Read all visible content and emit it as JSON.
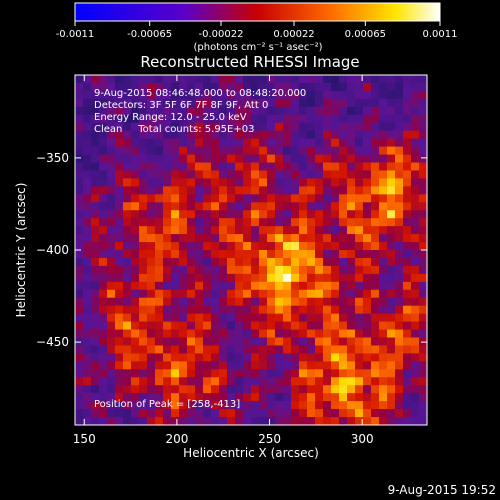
{
  "colorbar": {
    "tick_labels": [
      "-0.0011",
      "-0.00065",
      "-0.00022",
      "0.00022",
      "0.00065",
      "0.0011"
    ],
    "ticks": [
      -0.0011,
      -0.00065,
      -0.00022,
      0.00022,
      0.00065,
      0.0011
    ],
    "range": [
      -0.0011,
      0.0011
    ],
    "colors": [
      "#0000ff",
      "#5a00c8",
      "#ff0000",
      "#ff8800",
      "#ffff00",
      "#ffffff"
    ]
  },
  "chart_data": {
    "type": "heatmap",
    "title": "Reconstructed RHESSI Image",
    "unit_label": "(photons cm⁻² s⁻¹ asec⁻²)",
    "xlabel": "Heliocentric X (arcsec)",
    "ylabel": "Heliocentric Y (arcsec)",
    "xlim": [
      145,
      335
    ],
    "ylim": [
      -495,
      -305
    ],
    "x_ticks": [
      150,
      200,
      250,
      300
    ],
    "y_ticks": [
      -350,
      -400,
      -450
    ],
    "info_lines": [
      "9-Aug-2015 08:46:48.000 to 08:48:20.000",
      "Detectors: 3F 5F 6F 7F 8F 9F, Att 0",
      "Energy Range: 12.0 - 25.0 keV",
      "Clean     Total counts: 5.95E+03"
    ],
    "peak_label": "Position of Peak = [258,-413]",
    "peak": [
      258,
      -413
    ],
    "sources": [
      {
        "x": 258,
        "y": -413,
        "amp": 1.0
      },
      {
        "x": 312,
        "y": -370,
        "amp": 0.85
      },
      {
        "x": 290,
        "y": -475,
        "amp": 0.9
      },
      {
        "x": 190,
        "y": -385,
        "amp": 0.6
      },
      {
        "x": 175,
        "y": -440,
        "amp": 0.55
      },
      {
        "x": 205,
        "y": -470,
        "amp": 0.55
      },
      {
        "x": 325,
        "y": -440,
        "amp": 0.5
      },
      {
        "x": 235,
        "y": -355,
        "amp": 0.45
      }
    ]
  },
  "footer": {
    "timestamp": "9-Aug-2015 19:52"
  }
}
